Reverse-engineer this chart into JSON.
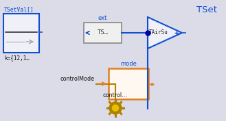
{
  "bg_color": "#dcdce8",
  "blue": "#1050d0",
  "dark_blue": "#0000aa",
  "orange": "#e08020",
  "gold_dark": "#b08000",
  "gold_light": "#e8c000",
  "block_face": "#f0f0f8",
  "ts_face": "#f0f0ee",
  "mode_face": "#fff8f0",
  "title": "TSet",
  "tsetval_label": "TSetVal[]",
  "k_label": "k={12,1…",
  "ext_label": "ext",
  "ts_label": "TS…",
  "tairsu_label": "TAirSu",
  "mode_label": "mode",
  "controlmode_label": "controlMode",
  "control_label": "control…",
  "figw": 3.29,
  "figh": 1.77,
  "dpi": 100
}
